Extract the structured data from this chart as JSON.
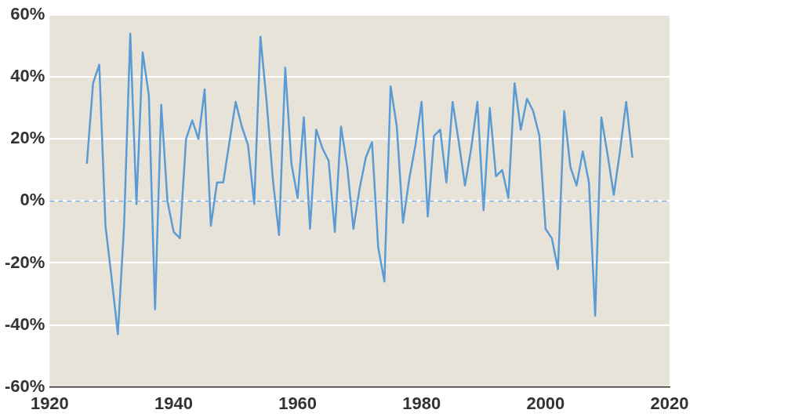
{
  "chart_data": {
    "type": "line",
    "x": [
      1926,
      1927,
      1928,
      1929,
      1930,
      1931,
      1932,
      1933,
      1934,
      1935,
      1936,
      1937,
      1938,
      1939,
      1940,
      1941,
      1942,
      1943,
      1944,
      1945,
      1946,
      1947,
      1948,
      1949,
      1950,
      1951,
      1952,
      1953,
      1954,
      1955,
      1956,
      1957,
      1958,
      1959,
      1960,
      1961,
      1962,
      1963,
      1964,
      1965,
      1966,
      1967,
      1968,
      1969,
      1970,
      1971,
      1972,
      1973,
      1974,
      1975,
      1976,
      1977,
      1978,
      1979,
      1980,
      1981,
      1982,
      1983,
      1984,
      1985,
      1986,
      1987,
      1988,
      1989,
      1990,
      1991,
      1992,
      1993,
      1994,
      1995,
      1996,
      1997,
      1998,
      1999,
      2000,
      2001,
      2002,
      2003,
      2004,
      2005,
      2006,
      2007,
      2008,
      2009,
      2010,
      2011,
      2012,
      2013,
      2014
    ],
    "series": [
      {
        "color": "#5b9bd5",
        "values": [
          12,
          38,
          44,
          -8,
          -25,
          -43,
          -8,
          54,
          -1,
          48,
          34,
          -35,
          31,
          0,
          -10,
          -12,
          20,
          26,
          20,
          36,
          -8,
          6,
          6,
          19,
          32,
          24,
          18,
          -1,
          53,
          32,
          7,
          -11,
          43,
          12,
          1,
          27,
          -9,
          23,
          17,
          13,
          -10,
          24,
          11,
          -9,
          4,
          14,
          19,
          -15,
          -26,
          37,
          24,
          -7,
          7,
          18,
          32,
          -5,
          21,
          23,
          6,
          32,
          19,
          5,
          17,
          32,
          -3,
          30,
          8,
          10,
          1,
          38,
          23,
          33,
          29,
          21,
          -9,
          -12,
          -22,
          29,
          11,
          5,
          16,
          6,
          -37,
          27,
          15,
          2,
          16,
          32,
          14
        ]
      }
    ],
    "xlim": [
      1920,
      2020
    ],
    "xticks": [
      1920,
      1940,
      1960,
      1980,
      2000,
      2020
    ],
    "ylim": [
      -60,
      60
    ],
    "yticks": [
      {
        "value": -60,
        "label": "-60%"
      },
      {
        "value": -40,
        "label": "-40%"
      },
      {
        "value": -20,
        "label": "-20%"
      },
      {
        "value": 0,
        "label": "0%"
      },
      {
        "value": 20,
        "label": "20%"
      },
      {
        "value": 40,
        "label": "40%"
      },
      {
        "value": 60,
        "label": "60%"
      }
    ],
    "grid": "y",
    "legend": false,
    "marker": "none",
    "line_style": "solid",
    "ref_lines": [
      {
        "axis": "y",
        "value": 0,
        "color": "#7aaee0",
        "line_style": "dashed"
      }
    ]
  }
}
